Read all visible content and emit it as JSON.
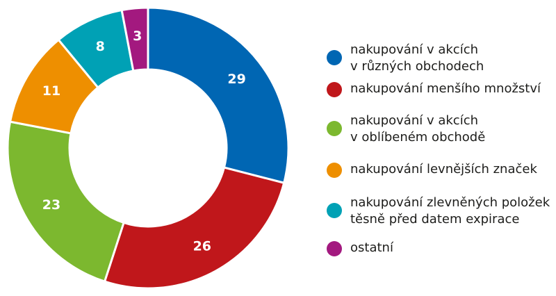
{
  "chart_data": {
    "type": "pie",
    "variant": "donut",
    "title": "",
    "legend_position": "right",
    "series": [
      {
        "values": [
          29,
          26,
          23,
          11,
          8,
          3
        ]
      }
    ],
    "categories": [
      {
        "name": "nakupování v akcích v různých obchodech",
        "lines": [
          "nakupování v akcích",
          "v různých obchodech"
        ],
        "value": 29,
        "label": "29",
        "color": "#0066b3"
      },
      {
        "name": "nakupování menšího množství",
        "lines": [
          "nakupování menšího množství"
        ],
        "value": 26,
        "label": "26",
        "color": "#c0171b"
      },
      {
        "name": "nakupování v akcích v oblíbeném obchodě",
        "lines": [
          "nakupování v akcích",
          "v oblíbeném obchodě"
        ],
        "value": 23,
        "label": "23",
        "color": "#7cb82f"
      },
      {
        "name": "nakupování levnějších značek",
        "lines": [
          "nakupování levnějších značek"
        ],
        "value": 11,
        "label": "11",
        "color": "#ee8f00"
      },
      {
        "name": "nakupování zlevněných položek těsně před datem expirace",
        "lines": [
          "nakupování zlevněných položek",
          "těsně před datem expirace"
        ],
        "value": 8,
        "label": "8",
        "color": "#00a1b5"
      },
      {
        "name": "ostatní",
        "lines": [
          "ostatní"
        ],
        "value": 3,
        "label": "3",
        "color": "#a3197f"
      }
    ],
    "separator_color": "#ffffff"
  }
}
